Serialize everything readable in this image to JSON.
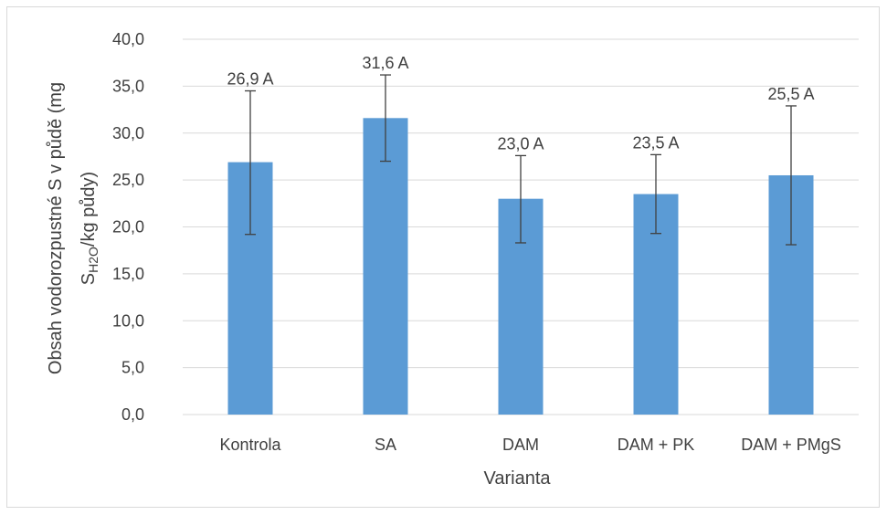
{
  "chart_data": {
    "type": "bar",
    "categories": [
      "Kontrola",
      "SA",
      "DAM",
      "DAM + PK",
      "DAM + PMgS"
    ],
    "values": [
      26.9,
      31.6,
      23.0,
      23.5,
      25.5
    ],
    "error_high": [
      34.5,
      36.2,
      27.6,
      27.7,
      32.9
    ],
    "error_low": [
      19.2,
      27.0,
      18.3,
      19.3,
      18.1
    ],
    "data_labels": [
      "26,9 A",
      "31,6 A",
      "23,0 A",
      "23,5 A",
      "25,5 A"
    ],
    "y_ticks": [
      "0,0",
      "5,0",
      "10,0",
      "15,0",
      "20,0",
      "25,0",
      "30,0",
      "35,0",
      "40,0"
    ],
    "ylim": [
      0,
      40
    ],
    "xlabel": "Varianta",
    "ylabel_line1": "Obsah vodorozpustné S v půdě (mg",
    "ylabel_line2_main": "S",
    "ylabel_line2_sub": "H2O",
    "ylabel_line2_rest": "/kg půdy)",
    "grid": true,
    "bar_color": "#5b9bd5"
  }
}
